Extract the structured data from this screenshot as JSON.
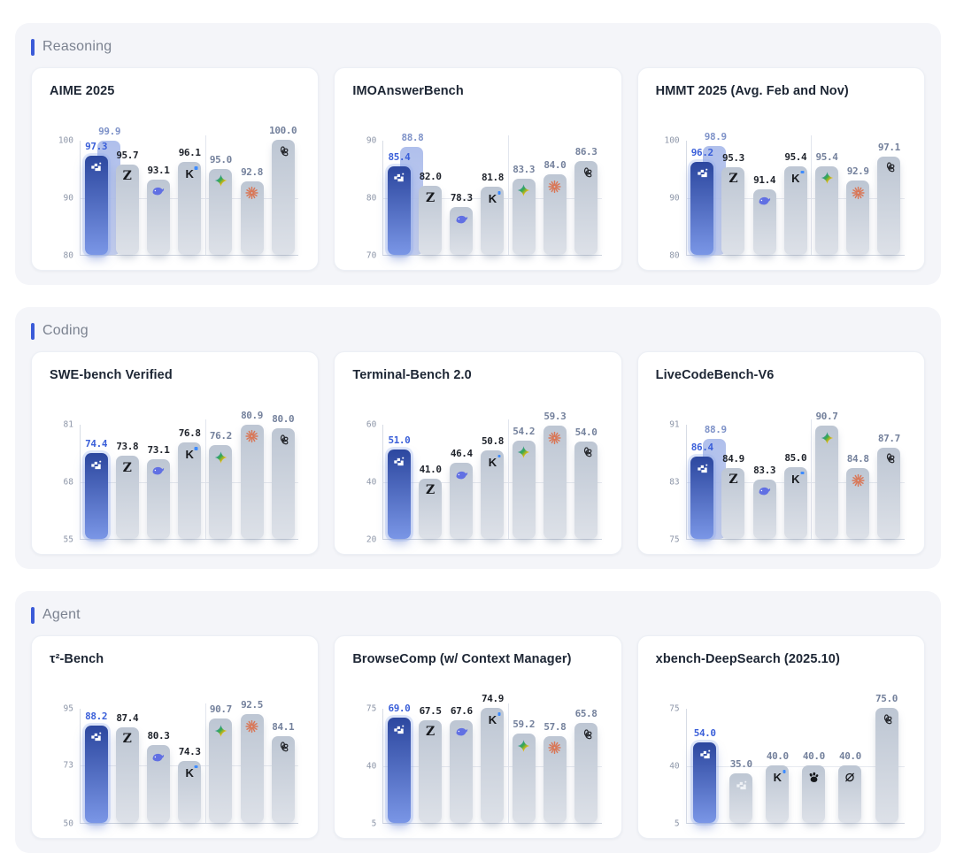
{
  "colors": {
    "accent": "#3b5bd8",
    "section_bg": "#f4f5f9",
    "card_bg": "#ffffff",
    "primary_bar_top": "#2c479f",
    "primary_bar_bottom": "#7a96e6",
    "ghost_bar": "#b3c2ea",
    "gray_bar_top": "#bdc6d3",
    "gray_bar_bottom": "#dde1e8",
    "primary_label": "#3a5fd9",
    "ghost_label": "#7e92c8",
    "dark_label": "#20242c",
    "slate_label": "#74819c",
    "claude_orange": "#D97757",
    "whale_blue": "#6170E3",
    "kimi_dot": "#3D8BFF"
  },
  "icons": [
    "minimax-icon",
    "minimax-gray-icon",
    "zai-z-icon",
    "deepseek-whale-icon",
    "kimi-k-icon",
    "gemini-star-icon",
    "claude-starburst-icon",
    "openai-logo-icon",
    "paw-icon",
    "slashed-circle-icon"
  ],
  "sections": [
    {
      "id": "reasoning",
      "label": "Reasoning"
    },
    {
      "id": "coding",
      "label": "Coding"
    },
    {
      "id": "agent",
      "label": "Agent"
    }
  ],
  "chart_data": [
    {
      "type": "bar",
      "section": "reasoning",
      "title": "AIME 2025",
      "xlabel": "",
      "ylabel": "",
      "ylim": [
        80,
        100
      ],
      "ticks": [
        100,
        90,
        80
      ],
      "separator_after": 3,
      "bars": [
        {
          "icon": "minimax",
          "value": 97.3,
          "label": "97.3",
          "style": "primary",
          "ghost_value": 99.9,
          "ghost_label": "99.9"
        },
        {
          "icon": "zai",
          "value": 95.7,
          "label": "95.7",
          "style": "dark"
        },
        {
          "icon": "deepseek",
          "value": 93.1,
          "label": "93.1",
          "style": "dark"
        },
        {
          "icon": "kimi",
          "value": 96.1,
          "label": "96.1",
          "style": "dark"
        },
        {
          "icon": "gemini",
          "value": 95.0,
          "label": "95.0",
          "style": "slate"
        },
        {
          "icon": "claude",
          "value": 92.8,
          "label": "92.8",
          "style": "slate"
        },
        {
          "icon": "openai",
          "value": 100.0,
          "label": "100.0",
          "style": "slate"
        }
      ]
    },
    {
      "type": "bar",
      "section": "reasoning",
      "title": "IMOAnswerBench",
      "xlabel": "",
      "ylabel": "",
      "ylim": [
        70,
        90
      ],
      "ticks": [
        90,
        80,
        70
      ],
      "separator_after": 3,
      "bars": [
        {
          "icon": "minimax",
          "value": 85.4,
          "label": "85.4",
          "style": "primary",
          "ghost_value": 88.8,
          "ghost_label": "88.8"
        },
        {
          "icon": "zai",
          "value": 82.0,
          "label": "82.0",
          "style": "dark"
        },
        {
          "icon": "deepseek",
          "value": 78.3,
          "label": "78.3",
          "style": "dark"
        },
        {
          "icon": "kimi",
          "value": 81.8,
          "label": "81.8",
          "style": "dark"
        },
        {
          "icon": "gemini",
          "value": 83.3,
          "label": "83.3",
          "style": "slate"
        },
        {
          "icon": "claude",
          "value": 84.0,
          "label": "84.0",
          "style": "slate"
        },
        {
          "icon": "openai",
          "value": 86.3,
          "label": "86.3",
          "style": "slate"
        }
      ]
    },
    {
      "type": "bar",
      "section": "reasoning",
      "title": "HMMT 2025 (Avg. Feb and Nov)",
      "xlabel": "",
      "ylabel": "",
      "ylim": [
        80,
        100
      ],
      "ticks": [
        100,
        90,
        80
      ],
      "separator_after": 3,
      "bars": [
        {
          "icon": "minimax",
          "value": 96.2,
          "label": "96.2",
          "style": "primary",
          "ghost_value": 98.9,
          "ghost_label": "98.9"
        },
        {
          "icon": "zai",
          "value": 95.3,
          "label": "95.3",
          "style": "dark"
        },
        {
          "icon": "deepseek",
          "value": 91.4,
          "label": "91.4",
          "style": "dark"
        },
        {
          "icon": "kimi",
          "value": 95.4,
          "label": "95.4",
          "style": "dark"
        },
        {
          "icon": "gemini",
          "value": 95.4,
          "label": "95.4",
          "style": "slate"
        },
        {
          "icon": "claude",
          "value": 92.9,
          "label": "92.9",
          "style": "slate"
        },
        {
          "icon": "openai",
          "value": 97.1,
          "label": "97.1",
          "style": "slate"
        }
      ]
    },
    {
      "type": "bar",
      "section": "coding",
      "title": "SWE-bench Verified",
      "xlabel": "",
      "ylabel": "",
      "ylim": [
        55,
        81
      ],
      "ticks": [
        81,
        68,
        55
      ],
      "separator_after": 3,
      "bars": [
        {
          "icon": "minimax",
          "value": 74.4,
          "label": "74.4",
          "style": "primary"
        },
        {
          "icon": "zai",
          "value": 73.8,
          "label": "73.8",
          "style": "dark"
        },
        {
          "icon": "deepseek",
          "value": 73.1,
          "label": "73.1",
          "style": "dark"
        },
        {
          "icon": "kimi",
          "value": 76.8,
          "label": "76.8",
          "style": "dark"
        },
        {
          "icon": "gemini",
          "value": 76.2,
          "label": "76.2",
          "style": "slate"
        },
        {
          "icon": "claude",
          "value": 80.9,
          "label": "80.9",
          "style": "slate"
        },
        {
          "icon": "openai",
          "value": 80.0,
          "label": "80.0",
          "style": "slate"
        }
      ]
    },
    {
      "type": "bar",
      "section": "coding",
      "title": "Terminal-Bench 2.0",
      "xlabel": "",
      "ylabel": "",
      "ylim": [
        20,
        60
      ],
      "ticks": [
        60,
        40,
        20
      ],
      "separator_after": 3,
      "bars": [
        {
          "icon": "minimax",
          "value": 51.0,
          "label": "51.0",
          "style": "primary"
        },
        {
          "icon": "zai",
          "value": 41.0,
          "label": "41.0",
          "style": "dark"
        },
        {
          "icon": "deepseek",
          "value": 46.4,
          "label": "46.4",
          "style": "dark"
        },
        {
          "icon": "kimi",
          "value": 50.8,
          "label": "50.8",
          "style": "dark"
        },
        {
          "icon": "gemini",
          "value": 54.2,
          "label": "54.2",
          "style": "slate"
        },
        {
          "icon": "claude",
          "value": 59.3,
          "label": "59.3",
          "style": "slate"
        },
        {
          "icon": "openai",
          "value": 54.0,
          "label": "54.0",
          "style": "slate"
        }
      ]
    },
    {
      "type": "bar",
      "section": "coding",
      "title": "LiveCodeBench-V6",
      "xlabel": "",
      "ylabel": "",
      "ylim": [
        75,
        91
      ],
      "ticks": [
        91,
        83,
        75
      ],
      "separator_after": 3,
      "bars": [
        {
          "icon": "minimax",
          "value": 86.4,
          "label": "86.4",
          "style": "primary",
          "ghost_value": 88.9,
          "ghost_label": "88.9"
        },
        {
          "icon": "zai",
          "value": 84.9,
          "label": "84.9",
          "style": "dark"
        },
        {
          "icon": "deepseek",
          "value": 83.3,
          "label": "83.3",
          "style": "dark"
        },
        {
          "icon": "kimi",
          "value": 85.0,
          "label": "85.0",
          "style": "dark"
        },
        {
          "icon": "gemini",
          "value": 90.7,
          "label": "90.7",
          "style": "slate"
        },
        {
          "icon": "claude",
          "value": 84.8,
          "label": "84.8",
          "style": "slate"
        },
        {
          "icon": "openai",
          "value": 87.7,
          "label": "87.7",
          "style": "slate"
        }
      ]
    },
    {
      "type": "bar",
      "section": "agent",
      "title": "τ²-Bench",
      "xlabel": "",
      "ylabel": "",
      "ylim": [
        50,
        95
      ],
      "ticks": [
        95,
        73,
        50
      ],
      "separator_after": 3,
      "bars": [
        {
          "icon": "minimax",
          "value": 88.2,
          "label": "88.2",
          "style": "primary"
        },
        {
          "icon": "zai",
          "value": 87.4,
          "label": "87.4",
          "style": "dark"
        },
        {
          "icon": "deepseek",
          "value": 80.3,
          "label": "80.3",
          "style": "dark"
        },
        {
          "icon": "kimi",
          "value": 74.3,
          "label": "74.3",
          "style": "dark"
        },
        {
          "icon": "gemini",
          "value": 90.7,
          "label": "90.7",
          "style": "slate"
        },
        {
          "icon": "claude",
          "value": 92.5,
          "label": "92.5",
          "style": "slate"
        },
        {
          "icon": "openai",
          "value": 84.1,
          "label": "84.1",
          "style": "slate"
        }
      ]
    },
    {
      "type": "bar",
      "section": "agent",
      "title": "BrowseComp (w/ Context Manager)",
      "xlabel": "",
      "ylabel": "",
      "ylim": [
        5,
        75
      ],
      "ticks": [
        75,
        40,
        5
      ],
      "separator_after": 3,
      "bars": [
        {
          "icon": "minimax",
          "value": 69.0,
          "label": "69.0",
          "style": "primary"
        },
        {
          "icon": "zai",
          "value": 67.5,
          "label": "67.5",
          "style": "dark"
        },
        {
          "icon": "deepseek",
          "value": 67.6,
          "label": "67.6",
          "style": "dark"
        },
        {
          "icon": "kimi",
          "value": 74.9,
          "label": "74.9",
          "style": "dark"
        },
        {
          "icon": "gemini",
          "value": 59.2,
          "label": "59.2",
          "style": "slate"
        },
        {
          "icon": "claude",
          "value": 57.8,
          "label": "57.8",
          "style": "slate"
        },
        {
          "icon": "openai",
          "value": 65.8,
          "label": "65.8",
          "style": "slate"
        }
      ]
    },
    {
      "type": "bar",
      "section": "agent",
      "title": "xbench-DeepSearch (2025.10)",
      "xlabel": "",
      "ylabel": "",
      "ylim": [
        5,
        75
      ],
      "ticks": [
        75,
        40,
        5
      ],
      "separator_after": null,
      "bars": [
        {
          "icon": "minimax",
          "value": 54.0,
          "label": "54.0",
          "style": "primary"
        },
        {
          "icon": "minimax-gray",
          "value": 35.0,
          "label": "35.0",
          "style": "slate"
        },
        {
          "icon": "kimi",
          "value": 40.0,
          "label": "40.0",
          "style": "slate"
        },
        {
          "icon": "paw",
          "value": 40.0,
          "label": "40.0",
          "style": "slate"
        },
        {
          "icon": "slashed-circle",
          "value": 40.0,
          "label": "40.0",
          "style": "slate"
        },
        {
          "icon": "openai",
          "value": 75.0,
          "label": "75.0",
          "style": "slate"
        }
      ]
    }
  ]
}
